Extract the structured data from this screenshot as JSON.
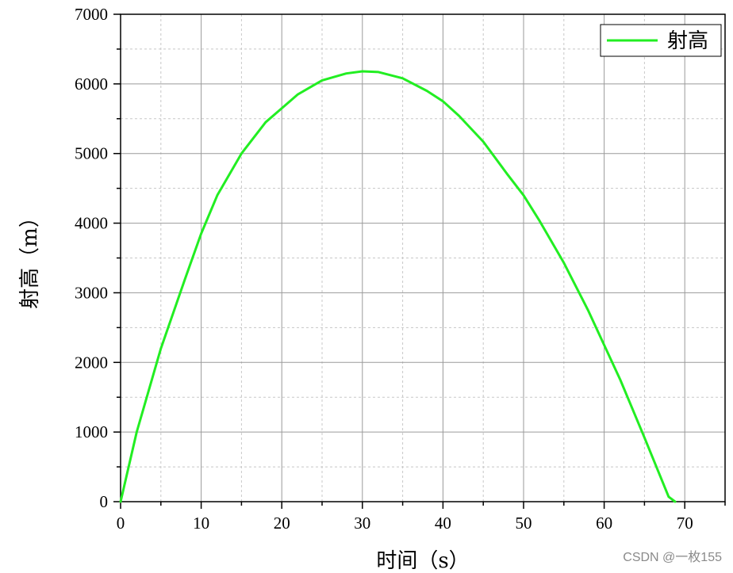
{
  "chart_data": {
    "type": "line",
    "xlabel": "时间（s）",
    "ylabel": "射高（m）",
    "xlim": [
      0,
      75
    ],
    "ylim": [
      0,
      7000
    ],
    "x_ticks": [
      0,
      10,
      20,
      30,
      40,
      50,
      60,
      70
    ],
    "y_ticks": [
      0,
      1000,
      2000,
      3000,
      4000,
      5000,
      6000,
      7000
    ],
    "grid": true,
    "legend_position": "top-right",
    "series": [
      {
        "name": "射高",
        "color": "#22ee22",
        "x": [
          0,
          2,
          5,
          8,
          10,
          12,
          15,
          18,
          20,
          22,
          25,
          28,
          30,
          32,
          35,
          38,
          40,
          42,
          45,
          48,
          50,
          52,
          55,
          58,
          60,
          62,
          65,
          68,
          68.8
        ],
        "y": [
          0,
          1000,
          2200,
          3200,
          3850,
          4400,
          5000,
          5450,
          5650,
          5850,
          6050,
          6150,
          6180,
          6170,
          6080,
          5900,
          5750,
          5540,
          5170,
          4700,
          4400,
          4030,
          3430,
          2750,
          2250,
          1750,
          920,
          70,
          0
        ]
      }
    ]
  },
  "watermark": "CSDN @一枚155"
}
